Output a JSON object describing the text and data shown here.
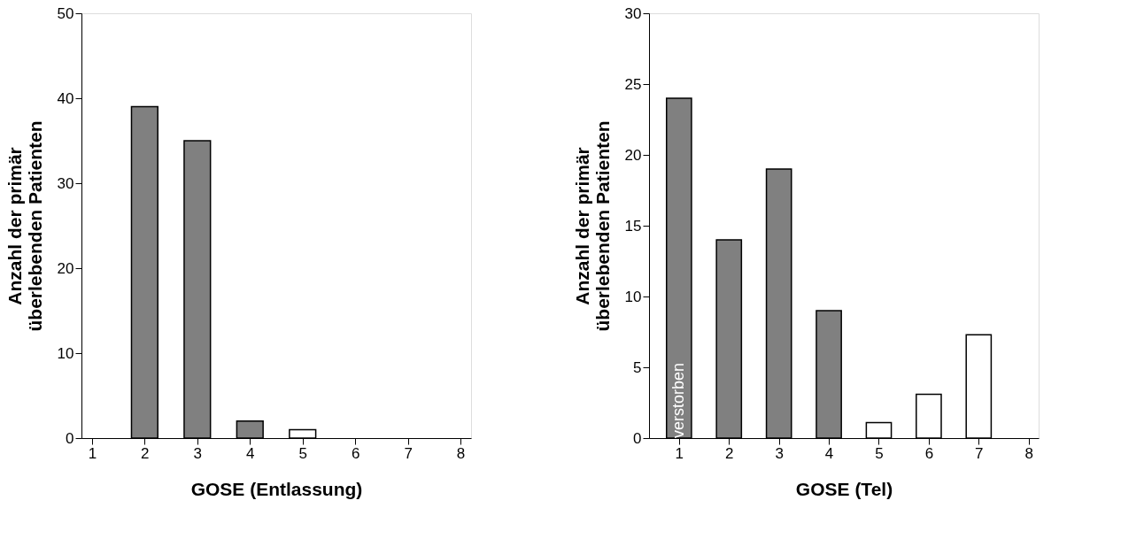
{
  "chart_data": [
    {
      "type": "bar",
      "x": [
        1,
        2,
        3,
        4,
        5,
        6,
        7,
        8
      ],
      "values": [
        0,
        39,
        35,
        2,
        1,
        0,
        0,
        0
      ],
      "colors": [
        "#808080",
        "#808080",
        "#808080",
        "#808080",
        "#ffffff",
        "#ffffff",
        "#ffffff",
        "#ffffff"
      ],
      "xlabel": "GOSE (Entlassung)",
      "ylabel": "Anzahl der primär\nüberlebenden Patienten",
      "xlim": [
        0.8,
        8.2
      ],
      "xticks": [
        1,
        2,
        3,
        4,
        5,
        6,
        7,
        8
      ],
      "ylim": [
        0,
        50
      ],
      "yticks": [
        0,
        10,
        20,
        30,
        40,
        50
      ],
      "grid": false
    },
    {
      "type": "bar",
      "x": [
        1,
        2,
        3,
        4,
        5,
        6,
        7,
        8
      ],
      "values": [
        24,
        14,
        19,
        9,
        1.1,
        3.1,
        7.3,
        0
      ],
      "colors": [
        "#808080",
        "#808080",
        "#808080",
        "#808080",
        "#ffffff",
        "#ffffff",
        "#ffffff",
        "#ffffff"
      ],
      "xlabel": "GOSE (Tel)",
      "ylabel": "Anzahl der primär\nüberlebenden Patienten",
      "xlim": [
        0.4,
        8.2
      ],
      "xticks": [
        1,
        2,
        3,
        4,
        5,
        6,
        7,
        8
      ],
      "ylim": [
        0,
        30
      ],
      "yticks": [
        0,
        5,
        10,
        15,
        20,
        25,
        30
      ],
      "grid": false,
      "annotations": [
        "verstorben"
      ]
    }
  ]
}
